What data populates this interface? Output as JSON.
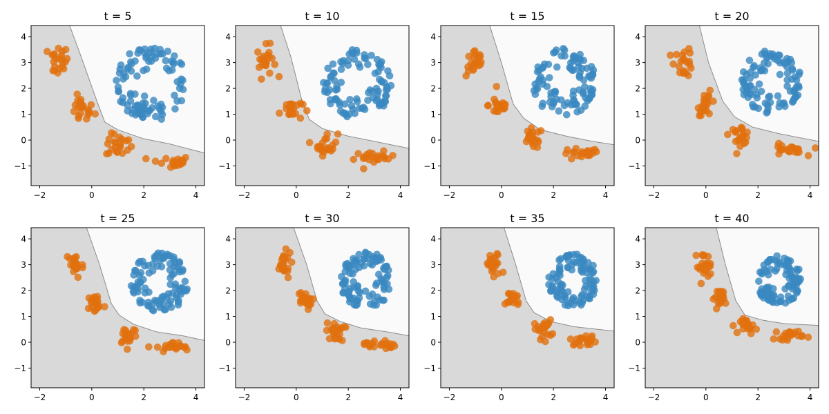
{
  "chart_data": {
    "type": "scatter",
    "title": "",
    "layout": {
      "rows": 2,
      "cols": 4,
      "grid": false,
      "legend": "none"
    },
    "colors": {
      "class_a_points": "#e1700e",
      "class_b_points": "#3a88c0",
      "region_a_fill": "#d9d9d9",
      "region_b_fill": "#fafafa",
      "boundary_line": "#8c8c8c",
      "axes_edge": "#000000"
    },
    "xlim": [
      -2.33,
      4.33
    ],
    "ylim": [
      -1.76,
      4.43
    ],
    "xticks": [
      -2,
      0,
      2,
      4
    ],
    "yticks": [
      -1,
      0,
      1,
      2,
      3,
      4
    ],
    "xtick_labels": [
      "−2",
      "0",
      "2",
      "4"
    ],
    "ytick_labels": [
      "−1",
      "0",
      "1",
      "2",
      "3",
      "4"
    ],
    "xlabel": "",
    "ylabel": "",
    "panels": [
      {
        "title": "t = 5",
        "boundary": [
          [
            -0.85,
            4.43
          ],
          [
            -0.4,
            3.2
          ],
          [
            0.2,
            1.5
          ],
          [
            0.5,
            0.7
          ],
          [
            1.0,
            0.4
          ],
          [
            2.0,
            0.05
          ],
          [
            3.0,
            -0.15
          ],
          [
            4.33,
            -0.5
          ]
        ],
        "orange_clusters": [
          {
            "cx": -1.3,
            "cy": 3.05,
            "sx": 0.2,
            "sy": 0.3,
            "n": 22
          },
          {
            "cx": -0.4,
            "cy": 1.15,
            "sx": 0.25,
            "sy": 0.25,
            "n": 22
          },
          {
            "cx": 1.05,
            "cy": -0.2,
            "sx": 0.25,
            "sy": 0.22,
            "n": 22
          },
          {
            "cx": 3.0,
            "cy": -0.85,
            "sx": 0.4,
            "sy": 0.12,
            "n": 22
          }
        ],
        "blue_clusters": [
          {
            "cx": 2.3,
            "cy": 2.2,
            "sx": 0.95,
            "sy": 1.0,
            "n": 100
          }
        ]
      },
      {
        "title": "t = 10",
        "boundary": [
          [
            -0.6,
            4.43
          ],
          [
            -0.2,
            3.2
          ],
          [
            0.2,
            1.6
          ],
          [
            0.5,
            0.8
          ],
          [
            1.0,
            0.45
          ],
          [
            2.0,
            0.15
          ],
          [
            3.0,
            -0.05
          ],
          [
            4.33,
            -0.32
          ]
        ],
        "orange_clusters": [
          {
            "cx": -1.15,
            "cy": 3.05,
            "sx": 0.18,
            "sy": 0.3,
            "n": 22
          },
          {
            "cx": -0.2,
            "cy": 1.2,
            "sx": 0.22,
            "sy": 0.22,
            "n": 22
          },
          {
            "cx": 1.15,
            "cy": -0.15,
            "sx": 0.22,
            "sy": 0.22,
            "n": 22
          },
          {
            "cx": 3.0,
            "cy": -0.7,
            "sx": 0.4,
            "sy": 0.12,
            "n": 22
          }
        ],
        "blue_clusters": [
          {
            "cx": 2.35,
            "cy": 2.2,
            "sx": 0.9,
            "sy": 0.95,
            "n": 100
          }
        ]
      },
      {
        "title": "t = 15",
        "boundary": [
          [
            -0.45,
            4.43
          ],
          [
            0.0,
            3.0
          ],
          [
            0.45,
            1.4
          ],
          [
            0.85,
            0.85
          ],
          [
            1.5,
            0.4
          ],
          [
            2.5,
            0.15
          ],
          [
            3.5,
            -0.05
          ],
          [
            4.33,
            -0.18
          ]
        ],
        "orange_clusters": [
          {
            "cx": -1.0,
            "cy": 3.0,
            "sx": 0.18,
            "sy": 0.28,
            "n": 22
          },
          {
            "cx": -0.1,
            "cy": 1.35,
            "sx": 0.2,
            "sy": 0.22,
            "n": 22
          },
          {
            "cx": 1.2,
            "cy": 0.05,
            "sx": 0.2,
            "sy": 0.2,
            "n": 22
          },
          {
            "cx": 3.05,
            "cy": -0.55,
            "sx": 0.38,
            "sy": 0.12,
            "n": 22
          }
        ],
        "blue_clusters": [
          {
            "cx": 2.4,
            "cy": 2.25,
            "sx": 0.85,
            "sy": 0.9,
            "n": 100
          }
        ]
      },
      {
        "title": "t = 20",
        "boundary": [
          [
            -0.25,
            4.43
          ],
          [
            0.1,
            3.0
          ],
          [
            0.65,
            1.5
          ],
          [
            1.1,
            0.9
          ],
          [
            1.8,
            0.5
          ],
          [
            2.8,
            0.25
          ],
          [
            4.33,
            -0.05
          ]
        ],
        "orange_clusters": [
          {
            "cx": -0.85,
            "cy": 3.0,
            "sx": 0.18,
            "sy": 0.28,
            "n": 22
          },
          {
            "cx": 0.05,
            "cy": 1.4,
            "sx": 0.18,
            "sy": 0.22,
            "n": 22
          },
          {
            "cx": 1.3,
            "cy": 0.2,
            "sx": 0.2,
            "sy": 0.18,
            "n": 22
          },
          {
            "cx": 3.1,
            "cy": -0.4,
            "sx": 0.35,
            "sy": 0.12,
            "n": 22
          }
        ],
        "blue_clusters": [
          {
            "cx": 2.5,
            "cy": 2.25,
            "sx": 0.8,
            "sy": 0.85,
            "n": 100
          }
        ]
      },
      {
        "title": "t = 25",
        "boundary": [
          [
            -0.2,
            4.43
          ],
          [
            0.3,
            3.0
          ],
          [
            0.75,
            1.5
          ],
          [
            1.05,
            1.05
          ],
          [
            1.6,
            0.7
          ],
          [
            2.5,
            0.4
          ],
          [
            3.5,
            0.25
          ],
          [
            4.33,
            0.07
          ]
        ],
        "orange_clusters": [
          {
            "cx": -0.65,
            "cy": 3.0,
            "sx": 0.17,
            "sy": 0.27,
            "n": 22
          },
          {
            "cx": 0.15,
            "cy": 1.5,
            "sx": 0.16,
            "sy": 0.2,
            "n": 22
          },
          {
            "cx": 1.4,
            "cy": 0.3,
            "sx": 0.18,
            "sy": 0.2,
            "n": 22
          },
          {
            "cx": 3.15,
            "cy": -0.2,
            "sx": 0.33,
            "sy": 0.1,
            "n": 22
          }
        ],
        "blue_clusters": [
          {
            "cx": 2.6,
            "cy": 2.3,
            "sx": 0.75,
            "sy": 0.8,
            "n": 100
          }
        ]
      },
      {
        "title": "t = 30",
        "boundary": [
          [
            -0.1,
            4.43
          ],
          [
            0.4,
            3.0
          ],
          [
            0.8,
            1.6
          ],
          [
            1.1,
            1.1
          ],
          [
            1.7,
            0.8
          ],
          [
            2.5,
            0.55
          ],
          [
            3.5,
            0.4
          ],
          [
            4.33,
            0.25
          ]
        ],
        "orange_clusters": [
          {
            "cx": -0.5,
            "cy": 3.0,
            "sx": 0.16,
            "sy": 0.26,
            "n": 22
          },
          {
            "cx": 0.3,
            "cy": 1.6,
            "sx": 0.15,
            "sy": 0.18,
            "n": 22
          },
          {
            "cx": 1.5,
            "cy": 0.4,
            "sx": 0.18,
            "sy": 0.18,
            "n": 22
          },
          {
            "cx": 3.2,
            "cy": -0.08,
            "sx": 0.3,
            "sy": 0.1,
            "n": 22
          }
        ],
        "blue_clusters": [
          {
            "cx": 2.7,
            "cy": 2.4,
            "sx": 0.7,
            "sy": 0.75,
            "n": 100
          }
        ]
      },
      {
        "title": "t = 35",
        "boundary": [
          [
            0.1,
            4.43
          ],
          [
            0.55,
            3.0
          ],
          [
            0.95,
            1.6
          ],
          [
            1.25,
            1.15
          ],
          [
            1.9,
            0.8
          ],
          [
            2.8,
            0.6
          ],
          [
            4.33,
            0.43
          ]
        ],
        "orange_clusters": [
          {
            "cx": -0.3,
            "cy": 2.95,
            "sx": 0.16,
            "sy": 0.26,
            "n": 22
          },
          {
            "cx": 0.45,
            "cy": 1.7,
            "sx": 0.14,
            "sy": 0.17,
            "n": 22
          },
          {
            "cx": 1.6,
            "cy": 0.5,
            "sx": 0.17,
            "sy": 0.18,
            "n": 22
          },
          {
            "cx": 3.2,
            "cy": 0.08,
            "sx": 0.28,
            "sy": 0.1,
            "n": 22
          }
        ],
        "blue_clusters": [
          {
            "cx": 2.75,
            "cy": 2.4,
            "sx": 0.65,
            "sy": 0.7,
            "n": 100
          }
        ]
      },
      {
        "title": "t = 40",
        "boundary": [
          [
            0.4,
            4.43
          ],
          [
            0.75,
            3.0
          ],
          [
            1.15,
            1.6
          ],
          [
            1.5,
            1.05
          ],
          [
            2.2,
            0.85
          ],
          [
            3.0,
            0.72
          ],
          [
            4.33,
            0.65
          ]
        ],
        "orange_clusters": [
          {
            "cx": -0.1,
            "cy": 2.95,
            "sx": 0.16,
            "sy": 0.26,
            "n": 22
          },
          {
            "cx": 0.6,
            "cy": 1.75,
            "sx": 0.14,
            "sy": 0.16,
            "n": 22
          },
          {
            "cx": 1.65,
            "cy": 0.62,
            "sx": 0.16,
            "sy": 0.14,
            "n": 22
          },
          {
            "cx": 3.2,
            "cy": 0.3,
            "sx": 0.28,
            "sy": 0.1,
            "n": 22
          }
        ],
        "blue_clusters": [
          {
            "cx": 2.8,
            "cy": 2.4,
            "sx": 0.6,
            "sy": 0.65,
            "n": 100
          }
        ]
      }
    ]
  }
}
